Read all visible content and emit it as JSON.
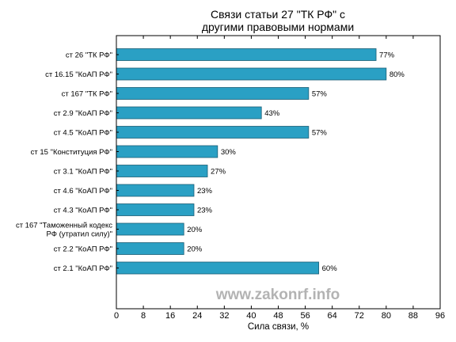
{
  "chart_data": {
    "type": "bar",
    "orientation": "horizontal",
    "title_lines": [
      "Связи статьи 27 \"ТК РФ\" с",
      "другими правовыми нормами"
    ],
    "xlabel": "Сила связи, %",
    "ylabel": "",
    "xlim": [
      0,
      96
    ],
    "xticks": [
      0,
      8,
      16,
      24,
      32,
      40,
      48,
      56,
      64,
      72,
      80,
      88,
      96
    ],
    "grid": false,
    "bar_color": "#2aa0c4",
    "categories": [
      {
        "label_lines": [
          "ст 26 \"ТК РФ\""
        ]
      },
      {
        "label_lines": [
          "ст 16.15 \"КоАП РФ\""
        ]
      },
      {
        "label_lines": [
          "ст 167 \"ТК РФ\""
        ]
      },
      {
        "label_lines": [
          "ст 2.9 \"КоАП РФ\""
        ]
      },
      {
        "label_lines": [
          "ст 4.5 \"КоАП РФ\""
        ]
      },
      {
        "label_lines": [
          "ст 15 \"Конституция РФ\""
        ]
      },
      {
        "label_lines": [
          "ст 3.1 \"КоАП РФ\""
        ]
      },
      {
        "label_lines": [
          "ст 4.6 \"КоАП РФ\""
        ]
      },
      {
        "label_lines": [
          "ст 4.3 \"КоАП РФ\""
        ]
      },
      {
        "label_lines": [
          "ст 167 \"Таможенный кодекс",
          "РФ (утратил силу)\""
        ]
      },
      {
        "label_lines": [
          "ст 2.2 \"КоАП РФ\""
        ]
      },
      {
        "label_lines": [
          "ст 2.1 \"КоАП РФ\""
        ]
      }
    ],
    "values": [
      77,
      80,
      57,
      43,
      57,
      30,
      27,
      23,
      23,
      20,
      20,
      60
    ],
    "value_labels": [
      "77%",
      "80%",
      "57%",
      "43%",
      "57%",
      "30%",
      "27%",
      "23%",
      "23%",
      "20%",
      "20%",
      "60%"
    ]
  },
  "watermark": {
    "text": "www.zakonrf.info",
    "color": "#b3b3b3"
  }
}
